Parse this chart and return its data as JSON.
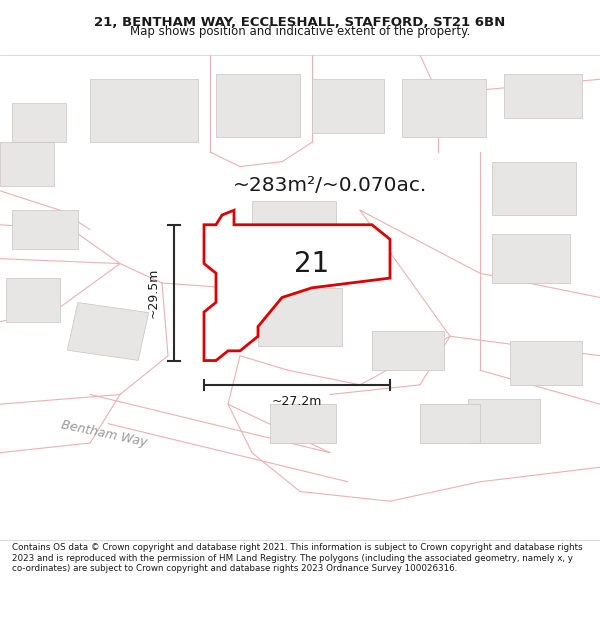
{
  "title_line1": "21, BENTHAM WAY, ECCLESHALL, STAFFORD, ST21 6BN",
  "title_line2": "Map shows position and indicative extent of the property.",
  "area_text": "~283m²/~0.070ac.",
  "label_21": "21",
  "dim_h": "~29.5m",
  "dim_w": "~27.2m",
  "street_label": "Bentham Way",
  "footer_text": "Contains OS data © Crown copyright and database right 2021. This information is subject to Crown copyright and database rights 2023 and is reproduced with the permission of HM Land Registry. The polygons (including the associated geometry, namely x, y co-ordinates) are subject to Crown copyright and database rights 2023 Ordnance Survey 100026316.",
  "map_bg": "#f7f5f5",
  "building_color": "#e8e5e5",
  "building_edge": "#c8c4c4",
  "road_line_color": "#f0b0b0",
  "highlight_color": "#dd0000",
  "highlight_fill": "#ffffff",
  "dim_line_color": "#2a2a2a",
  "text_color": "#1a1a1a",
  "street_text_color": "#999999",
  "title_bg": "#ffffff",
  "footer_bg": "#ffffff",
  "title_fontsize": 9.5,
  "subtitle_fontsize": 8.5,
  "area_fontsize": 14.5,
  "label_fontsize": 20,
  "dim_fontsize": 9,
  "street_fontsize": 9,
  "footer_fontsize": 6.3
}
